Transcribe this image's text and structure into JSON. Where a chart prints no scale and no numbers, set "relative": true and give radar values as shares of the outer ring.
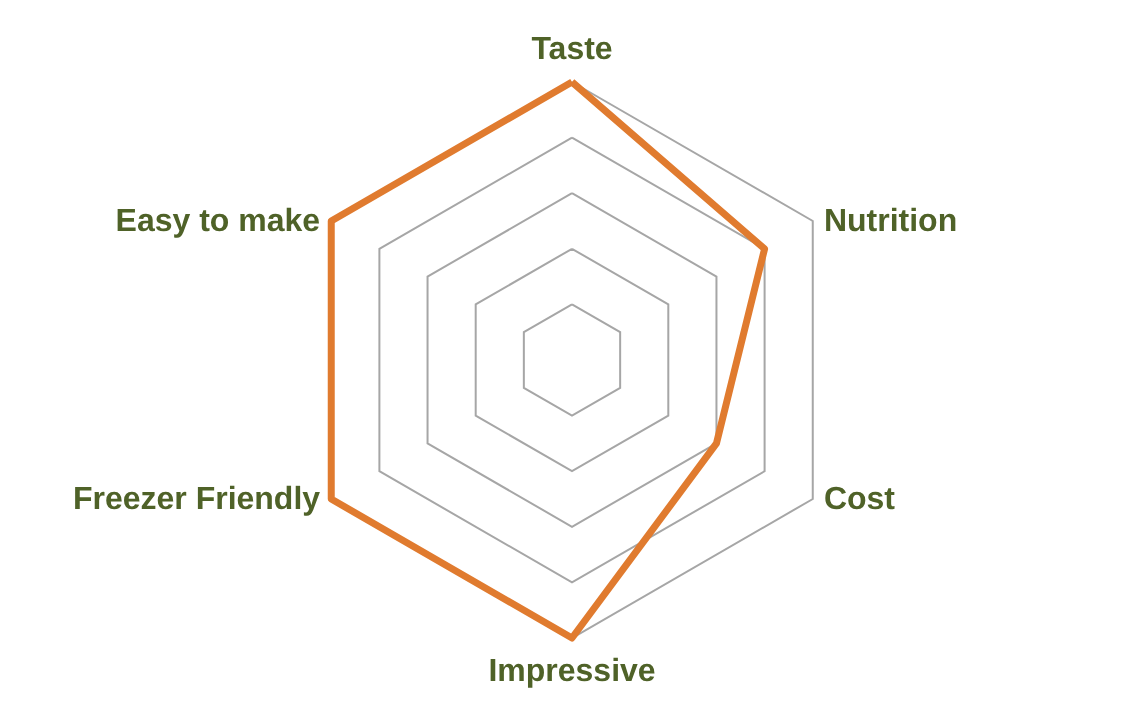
{
  "chart_data": {
    "type": "radar",
    "relative": true,
    "grid": true,
    "categories": [
      "Taste",
      "Nutrition",
      "Cost",
      "Impressive",
      "Freezer Friendly",
      "Easy to make"
    ],
    "series": [
      {
        "color": "#e07b2f",
        "values": [
          1,
          0.8,
          0.6,
          1,
          1,
          1
        ]
      }
    ]
  }
}
